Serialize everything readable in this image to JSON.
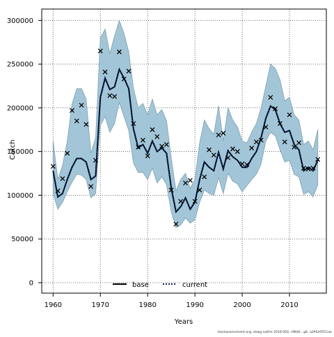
{
  "chart_data": {
    "type": "line",
    "title": "",
    "xlabel": "Years",
    "ylabel": "Catch",
    "xlim": [
      1957.6,
      2017.8
    ],
    "ylim": [
      -12000,
      313000
    ],
    "x_ticks": [
      1960,
      1970,
      1980,
      1990,
      2000,
      2010
    ],
    "y_ticks": [
      0,
      50000,
      100000,
      150000,
      200000,
      250000,
      300000
    ],
    "y_tick_labels": [
      "0",
      "50000",
      "100000",
      "150000",
      "200000",
      "250000",
      "300000"
    ],
    "grid": true,
    "legend_position": "bottom-center",
    "footer": "stockassessment.org, ahwg saithe 2018 002, r9840 , git: a295ef2f11ae",
    "colors": {
      "band": "#a2c6d8",
      "band_edge": "#7f9eae",
      "base": "#000000",
      "current": "#0a2a66",
      "grid": "#555555"
    },
    "series": [
      {
        "name": "base",
        "style": "solid"
      },
      {
        "name": "current",
        "style": "dotted",
        "x": [
          1960,
          1961,
          1962,
          1963,
          1964,
          1965,
          1966,
          1967,
          1968,
          1969,
          1970,
          1971,
          1972,
          1973,
          1974,
          1975,
          1976,
          1977,
          1978,
          1979,
          1980,
          1981,
          1982,
          1983,
          1984,
          1985,
          1986,
          1987,
          1988,
          1989,
          1990,
          1991,
          1992,
          1993,
          1994,
          1995,
          1996,
          1997,
          1998,
          1999,
          2000,
          2001,
          2002,
          2003,
          2004,
          2005,
          2006,
          2007,
          2008,
          2009,
          2010,
          2011,
          2012,
          2013,
          2014,
          2015,
          2016
        ],
        "estimate": [
          128000,
          98000,
          102000,
          118000,
          132000,
          142000,
          142000,
          138000,
          118000,
          122000,
          212000,
          234000,
          221000,
          224000,
          244000,
          234000,
          222000,
          176000,
          154000,
          158000,
          148000,
          162000,
          150000,
          154000,
          148000,
          108000,
          81000,
          87000,
          97000,
          84000,
          92000,
          118000,
          138000,
          132000,
          128000,
          149000,
          130000,
          151000,
          144000,
          140000,
          132000,
          132000,
          142000,
          150000,
          166000,
          188000,
          202000,
          198000,
          182000,
          172000,
          174000,
          158000,
          152000,
          128000,
          132000,
          128000,
          140000
        ],
        "lower": [
          102000,
          84000,
          92000,
          104000,
          115000,
          124000,
          123000,
          118000,
          97000,
          102000,
          180000,
          190000,
          172000,
          182000,
          206000,
          190000,
          174000,
          137000,
          126000,
          126000,
          118000,
          131000,
          114000,
          121000,
          112000,
          81000,
          63000,
          66000,
          74000,
          68000,
          72000,
          92000,
          106000,
          102000,
          100000,
          120000,
          102000,
          125000,
          116000,
          113000,
          104000,
          111000,
          118000,
          124000,
          136000,
          162000,
          172000,
          168000,
          152000,
          138000,
          140000,
          124000,
          121000,
          101000,
          104000,
          98000,
          112000
        ],
        "upper": [
          162000,
          118000,
          134000,
          162000,
          204000,
          222000,
          222000,
          210000,
          148000,
          166000,
          280000,
          290000,
          262000,
          282000,
          300000,
          285000,
          264000,
          222000,
          200000,
          205000,
          192000,
          210000,
          192000,
          198000,
          185000,
          142000,
          105000,
          118000,
          125000,
          108000,
          118000,
          160000,
          186000,
          176000,
          170000,
          202000,
          162000,
          200000,
          186000,
          178000,
          162000,
          160000,
          172000,
          182000,
          200000,
          225000,
          250000,
          245000,
          232000,
          208000,
          212000,
          192000,
          186000,
          158000,
          162000,
          152000,
          175000
        ]
      }
    ],
    "observations": {
      "marker": "x",
      "x": [
        1960,
        1961,
        1962,
        1963,
        1964,
        1965,
        1966,
        1967,
        1968,
        1969,
        1970,
        1971,
        1972,
        1973,
        1974,
        1975,
        1976,
        1977,
        1978,
        1979,
        1980,
        1981,
        1982,
        1983,
        1984,
        1985,
        1986,
        1987,
        1988,
        1989,
        1990,
        1991,
        1992,
        1993,
        1994,
        1995,
        1996,
        1997,
        1998,
        1999,
        2000,
        2001,
        2002,
        2003,
        2004,
        2005,
        2006,
        2007,
        2008,
        2009,
        2010,
        2011,
        2012,
        2013,
        2014,
        2015,
        2016
      ],
      "y": [
        133000,
        105000,
        119000,
        148000,
        197000,
        185000,
        203000,
        181000,
        110000,
        140000,
        265000,
        241000,
        214000,
        213000,
        264000,
        233000,
        242000,
        182000,
        155000,
        163000,
        145000,
        175000,
        167000,
        156000,
        158000,
        106000,
        67000,
        93000,
        114000,
        117000,
        93000,
        106000,
        121000,
        152000,
        146000,
        169000,
        171000,
        143000,
        153000,
        150000,
        136000,
        135000,
        154000,
        161000,
        163000,
        178000,
        212000,
        199000,
        182000,
        161000,
        192000,
        155000,
        160000,
        131000,
        130000,
        131000,
        141000
      ]
    }
  }
}
